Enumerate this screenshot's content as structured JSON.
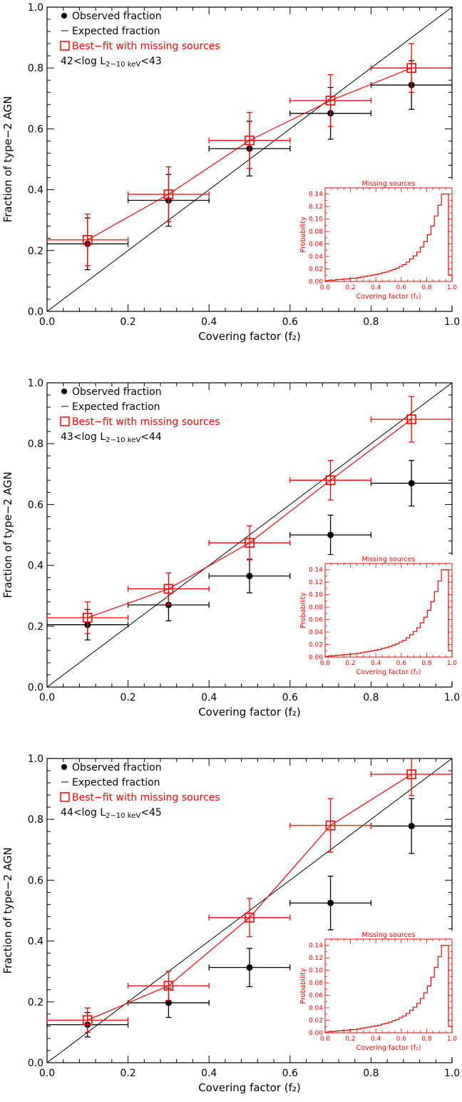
{
  "colors": {
    "observed": "#000000",
    "expected": "#000000",
    "bestfit": "#ff0000"
  },
  "legend_labels": {
    "observed": "Observed fraction",
    "expected": "Expected fraction",
    "bestfit": "Best−fit with missing sources"
  },
  "chart_data": [
    {
      "type": "scatter",
      "luminosity_label": {
        "pre": "42<log L",
        "sub": "2−10 keV",
        "post": "<43"
      },
      "xlabel": "Covering factor (f₂)",
      "ylabel": "Fraction of type−2 AGN",
      "xlim": [
        0,
        1
      ],
      "ylim": [
        0,
        1
      ],
      "x_ticks": [
        "0.0",
        "0.2",
        "0.4",
        "0.6",
        "0.8",
        "1.0"
      ],
      "y_ticks": [
        "0.0",
        "0.2",
        "0.4",
        "0.6",
        "0.8",
        "1.0"
      ],
      "legend_position": "top-left",
      "series": [
        {
          "name": "Observed fraction",
          "x": [
            0.1,
            0.3,
            0.5,
            0.7,
            0.9
          ],
          "x_err": [
            0.1,
            0.1,
            0.1,
            0.1,
            0.1
          ],
          "y": [
            0.222,
            0.365,
            0.535,
            0.651,
            0.744
          ],
          "y_err": [
            0.085,
            0.085,
            0.09,
            0.085,
            0.08
          ]
        },
        {
          "name": "Expected fraction",
          "x": [
            0,
            1
          ],
          "y": [
            0,
            1
          ]
        },
        {
          "name": "Best−fit with missing sources",
          "x": [
            0.1,
            0.3,
            0.5,
            0.7,
            0.9
          ],
          "x_err": [
            0.1,
            0.1,
            0.1,
            0.1,
            0.1
          ],
          "y": [
            0.235,
            0.385,
            0.562,
            0.693,
            0.8
          ],
          "y_err": [
            0.085,
            0.09,
            0.092,
            0.085,
            0.08
          ]
        }
      ],
      "inset": {
        "title": "Missing sources",
        "xlabel": "Covering factor (f₂)",
        "ylabel": "Probability",
        "xlim": [
          0,
          1
        ],
        "ylim": [
          0,
          0.15
        ],
        "x_ticks": [
          "0.0",
          "0.2",
          "0.4",
          "0.6",
          "0.8",
          "1.0"
        ],
        "y_ticks": [
          "0.00",
          "0.02",
          "0.04",
          "0.06",
          "0.08",
          "0.10",
          "0.12",
          "0.14"
        ],
        "histogram": [
          0.001,
          0.002,
          0.002,
          0.003,
          0.003,
          0.004,
          0.004,
          0.005,
          0.005,
          0.006,
          0.007,
          0.008,
          0.009,
          0.01,
          0.011,
          0.012,
          0.014,
          0.015,
          0.017,
          0.019,
          0.021,
          0.024,
          0.027,
          0.031,
          0.036,
          0.041,
          0.047,
          0.055,
          0.064,
          0.075,
          0.089,
          0.105,
          0.122,
          0.14,
          0.14,
          0.01
        ]
      }
    },
    {
      "type": "scatter",
      "luminosity_label": {
        "pre": "43<log L",
        "sub": "2−10 keV",
        "post": "<44"
      },
      "xlabel": "Covering factor (f₂)",
      "ylabel": "Fraction of type−2 AGN",
      "xlim": [
        0,
        1
      ],
      "ylim": [
        0,
        1
      ],
      "x_ticks": [
        "0.0",
        "0.2",
        "0.4",
        "0.6",
        "0.8",
        "1.0"
      ],
      "y_ticks": [
        "0.0",
        "0.2",
        "0.4",
        "0.6",
        "0.8",
        "1.0"
      ],
      "legend_position": "top-left",
      "series": [
        {
          "name": "Observed fraction",
          "x": [
            0.1,
            0.3,
            0.5,
            0.7,
            0.9
          ],
          "x_err": [
            0.1,
            0.1,
            0.1,
            0.1,
            0.1
          ],
          "y": [
            0.205,
            0.27,
            0.365,
            0.5,
            0.67
          ],
          "y_err": [
            0.05,
            0.052,
            0.055,
            0.065,
            0.075
          ]
        },
        {
          "name": "Expected fraction",
          "x": [
            0,
            1
          ],
          "y": [
            0,
            1
          ]
        },
        {
          "name": "Best−fit with missing sources",
          "x": [
            0.1,
            0.3,
            0.5,
            0.7,
            0.9
          ],
          "x_err": [
            0.1,
            0.1,
            0.1,
            0.1,
            0.1
          ],
          "y": [
            0.228,
            0.323,
            0.474,
            0.68,
            0.88
          ],
          "y_err": [
            0.052,
            0.052,
            0.056,
            0.065,
            0.075
          ]
        }
      ],
      "inset": {
        "title": "Missing sources",
        "xlabel": "Covering factor (f₂)",
        "ylabel": "Probability",
        "xlim": [
          0,
          1
        ],
        "ylim": [
          0,
          0.15
        ],
        "x_ticks": [
          "0.0",
          "0.2",
          "0.4",
          "0.6",
          "0.8",
          "1.0"
        ],
        "y_ticks": [
          "0.00",
          "0.02",
          "0.04",
          "0.06",
          "0.08",
          "0.10",
          "0.12",
          "0.14"
        ],
        "histogram": [
          0.001,
          0.002,
          0.002,
          0.003,
          0.003,
          0.004,
          0.004,
          0.005,
          0.005,
          0.006,
          0.007,
          0.008,
          0.009,
          0.01,
          0.011,
          0.012,
          0.014,
          0.015,
          0.017,
          0.019,
          0.021,
          0.024,
          0.027,
          0.031,
          0.036,
          0.041,
          0.047,
          0.055,
          0.064,
          0.075,
          0.089,
          0.105,
          0.122,
          0.14,
          0.14,
          0.01
        ]
      }
    },
    {
      "type": "scatter",
      "luminosity_label": {
        "pre": "44<log L",
        "sub": "2−10 keV",
        "post": "<45"
      },
      "xlabel": "Covering factor (f₂)",
      "ylabel": "Fraction of type−2 AGN",
      "xlim": [
        0,
        1
      ],
      "ylim": [
        0,
        1
      ],
      "x_ticks": [
        "0.0",
        "0.2",
        "0.4",
        "0.6",
        "0.8",
        "1.0"
      ],
      "y_ticks": [
        "0.0",
        "0.2",
        "0.4",
        "0.6",
        "0.8",
        "1.0"
      ],
      "legend_position": "top-left",
      "series": [
        {
          "name": "Observed fraction",
          "x": [
            0.1,
            0.3,
            0.5,
            0.7,
            0.9
          ],
          "x_err": [
            0.1,
            0.1,
            0.1,
            0.1,
            0.1
          ],
          "y": [
            0.125,
            0.197,
            0.313,
            0.525,
            0.778
          ],
          "y_err": [
            0.04,
            0.048,
            0.063,
            0.088,
            0.09
          ]
        },
        {
          "name": "Expected fraction",
          "x": [
            0,
            1
          ],
          "y": [
            0,
            1
          ]
        },
        {
          "name": "Best−fit with missing sources",
          "x": [
            0.1,
            0.3,
            0.5,
            0.7,
            0.9
          ],
          "x_err": [
            0.1,
            0.1,
            0.1,
            0.1,
            0.1
          ],
          "y": [
            0.14,
            0.253,
            0.477,
            0.78,
            0.948
          ],
          "y_err": [
            0.04,
            0.048,
            0.063,
            0.088,
            0.07
          ]
        }
      ],
      "inset": {
        "title": "Missing sources",
        "xlabel": "Covering factor (f₂)",
        "ylabel": "Probability",
        "xlim": [
          0,
          1
        ],
        "ylim": [
          0,
          0.15
        ],
        "x_ticks": [
          "0.0",
          "0.2",
          "0.4",
          "0.6",
          "0.8",
          "1.0"
        ],
        "y_ticks": [
          "0.00",
          "0.02",
          "0.04",
          "0.06",
          "0.08",
          "0.10",
          "0.12",
          "0.14"
        ],
        "histogram": [
          0.001,
          0.002,
          0.002,
          0.003,
          0.003,
          0.004,
          0.004,
          0.005,
          0.005,
          0.006,
          0.007,
          0.008,
          0.009,
          0.01,
          0.011,
          0.012,
          0.014,
          0.015,
          0.017,
          0.019,
          0.021,
          0.024,
          0.027,
          0.031,
          0.036,
          0.041,
          0.047,
          0.055,
          0.064,
          0.075,
          0.089,
          0.105,
          0.122,
          0.14,
          0.14,
          0.01
        ]
      }
    }
  ]
}
